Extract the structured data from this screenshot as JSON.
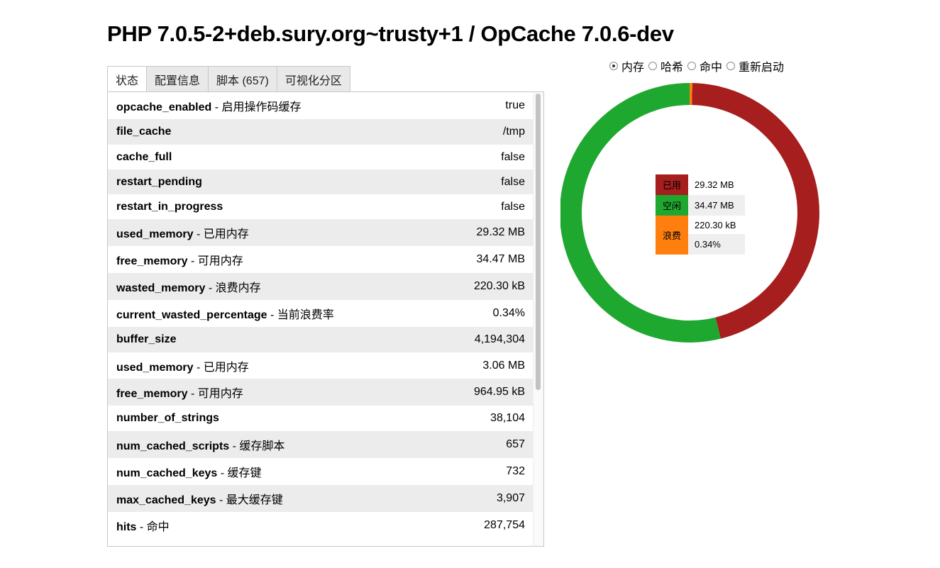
{
  "title": "PHP 7.0.5-2+deb.sury.org~trusty+1 / OpCache 7.0.6-dev",
  "tabs": [
    {
      "label": "状态"
    },
    {
      "label": "配置信息"
    },
    {
      "label": "脚本 (657)"
    },
    {
      "label": "可视化分区"
    }
  ],
  "status_rows": [
    {
      "key": "opcache_enabled",
      "desc": " - 启用操作码缓存",
      "value": "true"
    },
    {
      "key": "file_cache",
      "desc": "",
      "value": "/tmp"
    },
    {
      "key": "cache_full",
      "desc": "",
      "value": "false"
    },
    {
      "key": "restart_pending",
      "desc": "",
      "value": "false"
    },
    {
      "key": "restart_in_progress",
      "desc": "",
      "value": "false"
    },
    {
      "key": "used_memory",
      "desc": " - 已用内存",
      "value": "29.32 MB"
    },
    {
      "key": "free_memory",
      "desc": " - 可用内存",
      "value": "34.47 MB"
    },
    {
      "key": "wasted_memory",
      "desc": " - 浪费内存",
      "value": "220.30 kB"
    },
    {
      "key": "current_wasted_percentage",
      "desc": " - 当前浪费率",
      "value": "0.34%"
    },
    {
      "key": "buffer_size",
      "desc": "",
      "value": "4,194,304"
    },
    {
      "key": "used_memory",
      "desc": " - 已用内存",
      "value": "3.06 MB"
    },
    {
      "key": "free_memory",
      "desc": " - 可用内存",
      "value": "964.95 kB"
    },
    {
      "key": "number_of_strings",
      "desc": "",
      "value": "38,104"
    },
    {
      "key": "num_cached_scripts",
      "desc": " - 缓存脚本",
      "value": "657"
    },
    {
      "key": "num_cached_keys",
      "desc": " - 缓存键",
      "value": "732"
    },
    {
      "key": "max_cached_keys",
      "desc": " - 最大缓存键",
      "value": "3,907"
    },
    {
      "key": "hits",
      "desc": " - 命中",
      "value": "287,754"
    }
  ],
  "graph_options": {
    "selected": "内存",
    "options": [
      "内存",
      "哈希",
      "命中",
      "重新启动"
    ]
  },
  "chart_data": {
    "type": "pie",
    "title": "",
    "categories": [
      "已用",
      "空闲",
      "浪费"
    ],
    "values": [
      29.32,
      34.47,
      0.2151
    ],
    "unit": "MB",
    "colors": [
      "#a61e1e",
      "#1fa82f",
      "#ff7f0e"
    ],
    "legend": {
      "placement": "center",
      "items": [
        {
          "label": "已用",
          "value": "29.32 MB",
          "color": "#a61e1e"
        },
        {
          "label": "空闲",
          "value": "34.47 MB",
          "color": "#1fa82f"
        },
        {
          "label": "浪费",
          "value": "220.30 kB",
          "extra": "0.34%",
          "color": "#ff7f0e"
        }
      ]
    }
  }
}
